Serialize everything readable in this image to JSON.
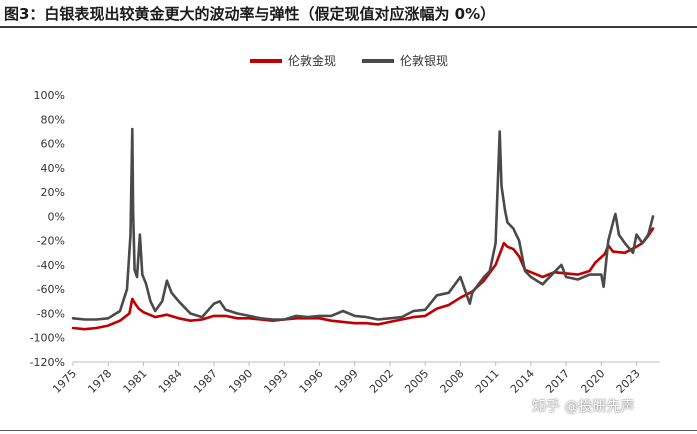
{
  "figure": {
    "title": "图3：白银表现出较黄金更大的波动率与弹性（假定现值对应涨幅为 0%）",
    "watermark": "知乎 @投研先声"
  },
  "colors": {
    "gold": "#c00000",
    "silver": "#4a4a4a"
  },
  "chart_data": {
    "type": "line",
    "title": "",
    "xlabel": "",
    "ylabel": "",
    "ylim": [
      -120,
      100
    ],
    "xlim": [
      1975,
      2025
    ],
    "y_unit": "%",
    "y_ticks": [
      100,
      80,
      60,
      40,
      20,
      0,
      -20,
      -40,
      -60,
      -80,
      -100,
      -120
    ],
    "y_tick_labels": [
      "100%",
      "80%",
      "60%",
      "40%",
      "20%",
      "0%",
      "-20%",
      "-40%",
      "-60%",
      "-80%",
      "-100%",
      "-120%"
    ],
    "x_tick_labels": [
      "1975",
      "1978",
      "1981",
      "1984",
      "1987",
      "1990",
      "1993",
      "1996",
      "1999",
      "2002",
      "2005",
      "2008",
      "2011",
      "2014",
      "2017",
      "2020",
      "2023"
    ],
    "legend_position": "top-center",
    "grid": false,
    "series": [
      {
        "name": "伦敦金现",
        "color": "#c00000",
        "points": [
          [
            1975.0,
            -92
          ],
          [
            1976.0,
            -93
          ],
          [
            1977.0,
            -92
          ],
          [
            1978.0,
            -90
          ],
          [
            1979.0,
            -86
          ],
          [
            1979.8,
            -80
          ],
          [
            1980.05,
            -68
          ],
          [
            1980.3,
            -72
          ],
          [
            1980.6,
            -76
          ],
          [
            1981.0,
            -79
          ],
          [
            1982.0,
            -83
          ],
          [
            1983.0,
            -81
          ],
          [
            1984.0,
            -84
          ],
          [
            1985.0,
            -86
          ],
          [
            1986.0,
            -85
          ],
          [
            1987.0,
            -82
          ],
          [
            1988.0,
            -82
          ],
          [
            1989.0,
            -84
          ],
          [
            1990.0,
            -84
          ],
          [
            1991.0,
            -85
          ],
          [
            1992.0,
            -86
          ],
          [
            1993.0,
            -85
          ],
          [
            1994.0,
            -84
          ],
          [
            1995.0,
            -84
          ],
          [
            1996.0,
            -84
          ],
          [
            1997.0,
            -86
          ],
          [
            1998.0,
            -87
          ],
          [
            1999.0,
            -88
          ],
          [
            2000.0,
            -88
          ],
          [
            2001.0,
            -89
          ],
          [
            2002.0,
            -87
          ],
          [
            2003.0,
            -85
          ],
          [
            2004.0,
            -83
          ],
          [
            2005.0,
            -82
          ],
          [
            2006.0,
            -76
          ],
          [
            2007.0,
            -73
          ],
          [
            2008.0,
            -67
          ],
          [
            2009.0,
            -62
          ],
          [
            2010.0,
            -53
          ],
          [
            2011.0,
            -40
          ],
          [
            2011.7,
            -22
          ],
          [
            2012.0,
            -25
          ],
          [
            2012.5,
            -27
          ],
          [
            2013.0,
            -33
          ],
          [
            2013.5,
            -44
          ],
          [
            2014.0,
            -46
          ],
          [
            2015.0,
            -50
          ],
          [
            2016.0,
            -46
          ],
          [
            2017.0,
            -47
          ],
          [
            2018.0,
            -48
          ],
          [
            2019.0,
            -45
          ],
          [
            2019.5,
            -38
          ],
          [
            2020.3,
            -31
          ],
          [
            2020.6,
            -24
          ],
          [
            2021.0,
            -29
          ],
          [
            2022.0,
            -30
          ],
          [
            2023.0,
            -25
          ],
          [
            2023.5,
            -22
          ],
          [
            2024.0,
            -16
          ],
          [
            2024.4,
            -10
          ]
        ]
      },
      {
        "name": "伦敦银现",
        "color": "#4a4a4a",
        "points": [
          [
            1975.0,
            -84
          ],
          [
            1976.0,
            -85
          ],
          [
            1977.0,
            -85
          ],
          [
            1978.0,
            -84
          ],
          [
            1979.0,
            -78
          ],
          [
            1979.6,
            -60
          ],
          [
            1979.9,
            -15
          ],
          [
            1980.05,
            72
          ],
          [
            1980.12,
            5
          ],
          [
            1980.25,
            -44
          ],
          [
            1980.45,
            -50
          ],
          [
            1980.7,
            -15
          ],
          [
            1980.9,
            -48
          ],
          [
            1981.2,
            -55
          ],
          [
            1981.6,
            -70
          ],
          [
            1982.0,
            -78
          ],
          [
            1982.6,
            -70
          ],
          [
            1983.0,
            -53
          ],
          [
            1983.4,
            -63
          ],
          [
            1984.0,
            -70
          ],
          [
            1985.0,
            -80
          ],
          [
            1986.0,
            -83
          ],
          [
            1987.0,
            -72
          ],
          [
            1987.5,
            -70
          ],
          [
            1988.0,
            -77
          ],
          [
            1989.0,
            -80
          ],
          [
            1990.0,
            -82
          ],
          [
            1991.0,
            -84
          ],
          [
            1992.0,
            -85
          ],
          [
            1993.0,
            -85
          ],
          [
            1994.0,
            -82
          ],
          [
            1995.0,
            -83
          ],
          [
            1996.0,
            -82
          ],
          [
            1997.0,
            -82
          ],
          [
            1998.0,
            -78
          ],
          [
            1999.0,
            -82
          ],
          [
            2000.0,
            -83
          ],
          [
            2001.0,
            -85
          ],
          [
            2002.0,
            -84
          ],
          [
            2003.0,
            -83
          ],
          [
            2004.0,
            -78
          ],
          [
            2005.0,
            -77
          ],
          [
            2006.0,
            -65
          ],
          [
            2007.0,
            -63
          ],
          [
            2008.0,
            -50
          ],
          [
            2008.8,
            -72
          ],
          [
            2009.0,
            -63
          ],
          [
            2010.0,
            -50
          ],
          [
            2010.5,
            -45
          ],
          [
            2011.0,
            -22
          ],
          [
            2011.35,
            70
          ],
          [
            2011.5,
            25
          ],
          [
            2011.8,
            5
          ],
          [
            2012.0,
            -5
          ],
          [
            2012.5,
            -10
          ],
          [
            2013.0,
            -20
          ],
          [
            2013.5,
            -45
          ],
          [
            2014.0,
            -50
          ],
          [
            2015.0,
            -56
          ],
          [
            2016.0,
            -46
          ],
          [
            2016.6,
            -40
          ],
          [
            2017.0,
            -50
          ],
          [
            2018.0,
            -52
          ],
          [
            2019.0,
            -48
          ],
          [
            2020.0,
            -48
          ],
          [
            2020.2,
            -58
          ],
          [
            2020.6,
            -20
          ],
          [
            2021.0,
            -5
          ],
          [
            2021.2,
            2
          ],
          [
            2021.5,
            -15
          ],
          [
            2022.0,
            -22
          ],
          [
            2022.7,
            -30
          ],
          [
            2023.0,
            -15
          ],
          [
            2023.5,
            -22
          ],
          [
            2024.0,
            -15
          ],
          [
            2024.4,
            0
          ]
        ]
      }
    ]
  }
}
